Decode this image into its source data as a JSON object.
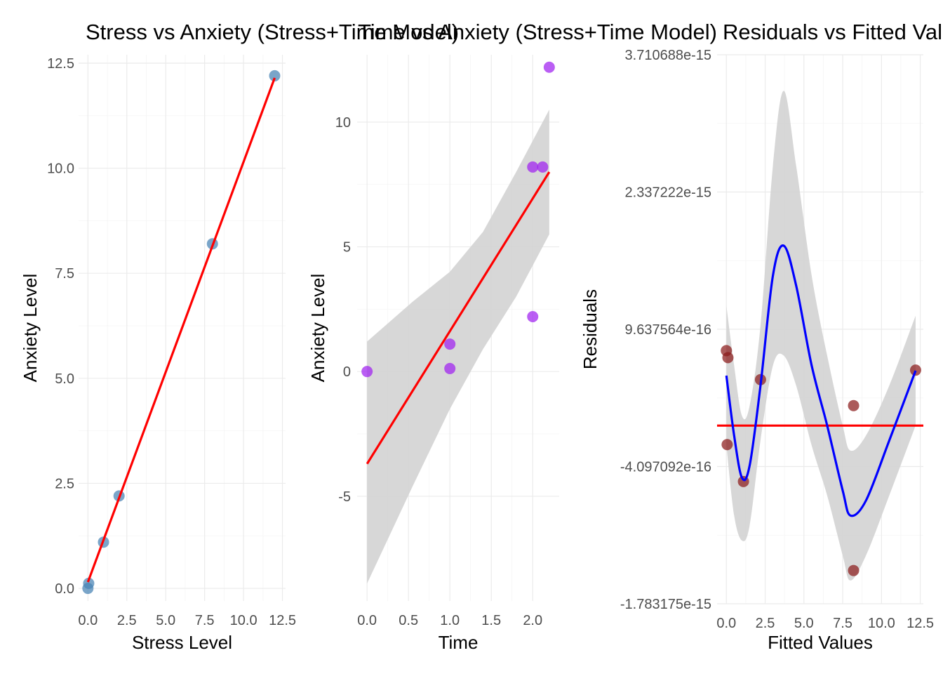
{
  "chart_data": [
    {
      "type": "scatter",
      "title": "Stress vs Anxiety (Stress+Time Model)",
      "xlabel": "Stress Level",
      "ylabel": "Anxiety Level",
      "xlim": [
        -0.6,
        12.7
      ],
      "ylim": [
        -0.3,
        12.7
      ],
      "x_ticks": [
        0.0,
        2.5,
        5.0,
        7.5,
        10.0,
        12.5
      ],
      "x_tick_labels": [
        "0.0",
        "2.5",
        "5.0",
        "7.5",
        "10.0",
        "12.5"
      ],
      "y_ticks": [
        0.0,
        2.5,
        5.0,
        7.5,
        10.0,
        12.5
      ],
      "y_tick_labels": [
        "0.0",
        "2.5",
        "5.0",
        "7.5",
        "10.0",
        "12.5"
      ],
      "grid": true,
      "point_color": "#4682b4",
      "line_color": "#ff0000",
      "points": [
        {
          "x": 0.0,
          "y": 0.0
        },
        {
          "x": 0.05,
          "y": 0.12
        },
        {
          "x": 1.0,
          "y": 1.1
        },
        {
          "x": 2.0,
          "y": 2.2
        },
        {
          "x": 8.0,
          "y": 8.2
        },
        {
          "x": 12.0,
          "y": 12.2
        }
      ],
      "fit_line": [
        {
          "x": 0.0,
          "y": 0.15
        },
        {
          "x": 12.0,
          "y": 12.15
        }
      ]
    },
    {
      "type": "scatter",
      "title": "Time vs Anxiety (Stress+Time Model)",
      "xlabel": "Time",
      "ylabel": "Anxiety Level",
      "xlim": [
        -0.12,
        2.32
      ],
      "ylim": [
        -9.2,
        12.7
      ],
      "x_ticks": [
        0.0,
        0.5,
        1.0,
        1.5,
        2.0
      ],
      "x_tick_labels": [
        "0.0",
        "0.5",
        "1.0",
        "1.5",
        "2.0"
      ],
      "y_ticks": [
        -5,
        0,
        5,
        10
      ],
      "y_tick_labels": [
        "-5",
        "0",
        "5",
        "10"
      ],
      "grid": true,
      "point_color": "#a020f0",
      "line_color": "#ff0000",
      "band_color": "#d3d3d3",
      "points": [
        {
          "x": 0.0,
          "y": 0.0
        },
        {
          "x": 1.0,
          "y": 1.1
        },
        {
          "x": 1.0,
          "y": 0.12
        },
        {
          "x": 2.0,
          "y": 8.2
        },
        {
          "x": 2.0,
          "y": 2.2
        },
        {
          "x": 2.12,
          "y": 8.2
        },
        {
          "x": 2.2,
          "y": 12.2
        }
      ],
      "fit_line": [
        {
          "x": 0.0,
          "y": -3.7
        },
        {
          "x": 2.2,
          "y": 8.0
        }
      ],
      "confidence_band": [
        {
          "x": 0.0,
          "lower": -8.5,
          "upper": 1.2
        },
        {
          "x": 0.55,
          "lower": -4.6,
          "upper": 2.8
        },
        {
          "x": 1.0,
          "lower": -1.5,
          "upper": 4.0
        },
        {
          "x": 1.4,
          "lower": 0.9,
          "upper": 5.6
        },
        {
          "x": 1.8,
          "lower": 3.0,
          "upper": 8.0
        },
        {
          "x": 2.2,
          "lower": 5.5,
          "upper": 10.5
        }
      ]
    },
    {
      "type": "scatter",
      "title": "Residuals vs Fitted Values",
      "xlabel": "Fitted Values",
      "ylabel": "Residuals",
      "xlim": [
        -0.6,
        12.7
      ],
      "ylim": [
        -1.783175e-15,
        3.710688e-15
      ],
      "x_ticks": [
        0.0,
        2.5,
        5.0,
        7.5,
        10.0,
        12.5
      ],
      "x_tick_labels": [
        "0.0",
        "2.5",
        "5.0",
        "7.5",
        "10.0",
        "12.5"
      ],
      "y_ticks": [
        -1.783175e-15,
        -4.097092e-16,
        9.637564e-16,
        2.337222e-15,
        3.710688e-15
      ],
      "y_tick_labels": [
        "-1.783175e-15",
        "-4.097092e-16",
        "9.637564e-16",
        "2.337222e-15",
        "3.710688e-15"
      ],
      "grid": true,
      "point_color": "#8b1a1a",
      "zero_line_color": "#ff0000",
      "smooth_color": "#0000ff",
      "band_color": "#d3d3d3",
      "zero_line_y": 0.0,
      "points": [
        {
          "x": 0.0,
          "y": 7.5e-16
        },
        {
          "x": 0.1,
          "y": 6.8e-16
        },
        {
          "x": 0.05,
          "y": -1.9e-16
        },
        {
          "x": 1.1,
          "y": -5.6e-16
        },
        {
          "x": 2.2,
          "y": 4.6e-16
        },
        {
          "x": 8.2,
          "y": 2e-16
        },
        {
          "x": 8.2,
          "y": -1.45e-15
        },
        {
          "x": 12.2,
          "y": 5.55e-16
        }
      ],
      "smooth": [
        {
          "x": 0.0,
          "y": 5e-16
        },
        {
          "x": 0.5,
          "y": -1e-16
        },
        {
          "x": 1.0,
          "y": -5.2e-16
        },
        {
          "x": 1.5,
          "y": -4e-16
        },
        {
          "x": 2.2,
          "y": 4e-16
        },
        {
          "x": 3.0,
          "y": 1.5e-15
        },
        {
          "x": 3.7,
          "y": 1.8e-15
        },
        {
          "x": 4.5,
          "y": 1.4e-15
        },
        {
          "x": 5.5,
          "y": 6e-16
        },
        {
          "x": 6.5,
          "y": 0.0
        },
        {
          "x": 7.5,
          "y": -6.5e-16
        },
        {
          "x": 8.0,
          "y": -9e-16
        },
        {
          "x": 9.0,
          "y": -7.5e-16
        },
        {
          "x": 10.5,
          "y": -1.5e-16
        },
        {
          "x": 12.2,
          "y": 5.5e-16
        }
      ],
      "smooth_band": [
        {
          "x": 0.0,
          "lower": -2e-16,
          "upper": 1.2e-15
        },
        {
          "x": 0.5,
          "lower": -9e-16,
          "upper": 6e-16
        },
        {
          "x": 1.0,
          "lower": -1.15e-15,
          "upper": 1e-16
        },
        {
          "x": 1.5,
          "lower": -1e-15,
          "upper": 2e-16
        },
        {
          "x": 2.2,
          "lower": -1.5e-16,
          "upper": 1e-15
        },
        {
          "x": 3.0,
          "lower": 6e-16,
          "upper": 2.6e-15
        },
        {
          "x": 3.7,
          "lower": 7e-16,
          "upper": 3.35e-15
        },
        {
          "x": 4.5,
          "lower": 4e-16,
          "upper": 2.6e-15
        },
        {
          "x": 5.5,
          "lower": -2e-16,
          "upper": 1.5e-15
        },
        {
          "x": 6.5,
          "lower": -7e-16,
          "upper": 7e-16
        },
        {
          "x": 7.5,
          "lower": -1.3e-15,
          "upper": 0.0
        },
        {
          "x": 8.0,
          "lower": -1.55e-15,
          "upper": -2.5e-16
        },
        {
          "x": 9.0,
          "lower": -1.3e-15,
          "upper": -1e-16
        },
        {
          "x": 10.5,
          "lower": -7e-16,
          "upper": 4e-16
        },
        {
          "x": 12.2,
          "lower": 0.0,
          "upper": 1.1e-15
        }
      ]
    }
  ]
}
